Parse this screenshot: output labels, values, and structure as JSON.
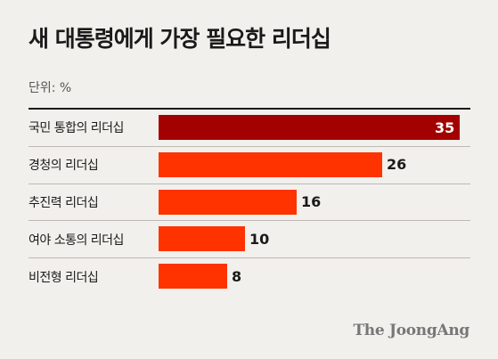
{
  "header": {
    "title": "새 대통령에게 가장 필요한 리더십",
    "unit": "단위: %"
  },
  "brand": {
    "logo": "The JoongAng"
  },
  "colors": {
    "highlight": "#a30000",
    "bar": "#ff3300",
    "background": "#f2f0ec"
  },
  "chart_data": {
    "type": "bar",
    "orientation": "horizontal",
    "categories": [
      "국민 통합의 리더십",
      "경청의 리더십",
      "추진력 리더십",
      "여야 소통의 리더십",
      "비전형 리더십"
    ],
    "values": [
      35,
      26,
      16,
      10,
      8
    ],
    "highlight_index": 0,
    "xlim": [
      0,
      35
    ]
  }
}
